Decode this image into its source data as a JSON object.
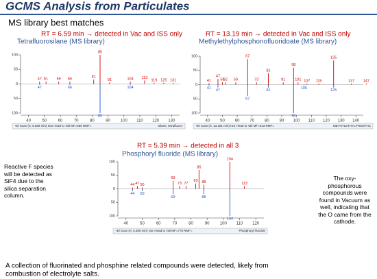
{
  "header": {
    "title": "GCMS Analysis from Particulates",
    "subtitle": "MS library best matches"
  },
  "spectra": [
    {
      "heading": "RT = 6.59 min → detected in Vac and ISS only",
      "compound": "Tetrafluorosilane (MS library)",
      "status": "+El Scan (rt: 6.589 min) ISS Head to Tail MF=666 RMF=",
      "library_name": "Silane, tetrafluoro-",
      "xlim": [
        35,
        135
      ],
      "xticks": [
        40,
        50,
        60,
        70,
        80,
        90,
        100,
        110,
        120,
        130
      ],
      "ylim": [
        -100,
        100
      ],
      "yticks": [
        {
          "value": -100,
          "label": "100"
        },
        {
          "value": -50,
          "label": "50"
        },
        0,
        50,
        100
      ],
      "sample": [
        {
          "mz": 47,
          "intensity": 8
        },
        {
          "mz": 51,
          "intensity": 8
        },
        {
          "mz": 59,
          "intensity": 8
        },
        {
          "mz": 66,
          "intensity": 8
        },
        {
          "mz": 81,
          "intensity": 15
        },
        {
          "mz": 85,
          "intensity": 100
        },
        {
          "mz": 91,
          "intensity": 5
        },
        {
          "mz": 104,
          "intensity": 8
        },
        {
          "mz": 113,
          "intensity": 12
        },
        {
          "mz": 119,
          "intensity": 4
        },
        {
          "mz": 125,
          "intensity": 4
        },
        {
          "mz": 131,
          "intensity": 4
        }
      ],
      "library": [
        {
          "mz": 47,
          "intensity": -3
        },
        {
          "mz": 66,
          "intensity": -3
        },
        {
          "mz": 85,
          "intensity": -100
        },
        {
          "mz": 104,
          "intensity": -3
        }
      ]
    },
    {
      "heading": "RT = 13.19 min → detected in Vac and ISS only",
      "compound": "Methylethylphosphonofluoridoate (MS library)",
      "status": "+El Scan (rt: 13.191 min) ISS Head to Tail MF=643 RMF=",
      "library_name": "METHYLETHYLPHOSPHC",
      "xlim": [
        35,
        145
      ],
      "xticks": [
        40,
        50,
        60,
        70,
        80,
        90,
        100,
        110,
        120,
        130,
        140
      ],
      "ylim": [
        -100,
        100
      ],
      "yticks": [
        {
          "value": -100,
          "label": "100"
        },
        {
          "value": -50,
          "label": "50"
        },
        0,
        50,
        100
      ],
      "sample": [
        {
          "mz": 41,
          "intensity": 5
        },
        {
          "mz": 47,
          "intensity": 20
        },
        {
          "mz": 50,
          "intensity": 8
        },
        {
          "mz": 52,
          "intensity": 8
        },
        {
          "mz": 59,
          "intensity": 8
        },
        {
          "mz": 67,
          "intensity": 90
        },
        {
          "mz": 73,
          "intensity": 8
        },
        {
          "mz": 81,
          "intensity": 40
        },
        {
          "mz": 91,
          "intensity": 8
        },
        {
          "mz": 98,
          "intensity": 60
        },
        {
          "mz": 101,
          "intensity": 8
        },
        {
          "mz": 107,
          "intensity": 4
        },
        {
          "mz": 115,
          "intensity": 4
        },
        {
          "mz": 125,
          "intensity": 85
        },
        {
          "mz": 137,
          "intensity": 4
        },
        {
          "mz": 147,
          "intensity": 4
        }
      ],
      "library": [
        {
          "mz": 41,
          "intensity": -3
        },
        {
          "mz": 47,
          "intensity": -10
        },
        {
          "mz": 67,
          "intensity": -40
        },
        {
          "mz": 81,
          "intensity": -10
        },
        {
          "mz": 98,
          "intensity": -100
        },
        {
          "mz": 105,
          "intensity": -3
        },
        {
          "mz": 125,
          "intensity": -10
        }
      ]
    },
    {
      "heading": "RT = 5.39 min → detected in all 3",
      "compound": "Phosphoryl fluoride (MS library)",
      "status": "+El Scan (rt: 5.389 min) Vac Head to Tail MF=778 RMF=",
      "library_name": "Phosphoryl fluoride",
      "xlim": [
        35,
        125
      ],
      "xticks": [
        40,
        50,
        60,
        70,
        80,
        90,
        100,
        110,
        120
      ],
      "ylim": [
        -100,
        100
      ],
      "yticks": [
        {
          "value": -100,
          "label": "100"
        },
        {
          "value": -50,
          "label": "50"
        },
        0,
        50,
        100
      ],
      "sample": [
        {
          "mz": 44,
          "intensity": 5
        },
        {
          "mz": 47,
          "intensity": 10
        },
        {
          "mz": 50,
          "intensity": 5
        },
        {
          "mz": 69,
          "intensity": 30
        },
        {
          "mz": 73,
          "intensity": 10
        },
        {
          "mz": 77,
          "intensity": 10
        },
        {
          "mz": 83,
          "intensity": 20
        },
        {
          "mz": 85,
          "intensity": 70
        },
        {
          "mz": 88,
          "intensity": 15
        },
        {
          "mz": 104,
          "intensity": 100
        },
        {
          "mz": 113,
          "intensity": 10
        }
      ],
      "library": [
        {
          "mz": 44,
          "intensity": -8
        },
        {
          "mz": 50,
          "intensity": -8
        },
        {
          "mz": 69,
          "intensity": -20
        },
        {
          "mz": 88,
          "intensity": -20
        },
        {
          "mz": 104,
          "intensity": -100
        }
      ]
    }
  ],
  "notes": {
    "left": "Reactive F species will be detected as SiF4 due to the silica separation column.",
    "right": "The oxy-phosphorous compounds were found in Vacuum as well, indicating that the O came from the cathode."
  },
  "footer": {
    "line1": "A collection of fluorinated and phosphine related compounds were detected, likely from",
    "line2": "combustion of electrolyte salts."
  }
}
